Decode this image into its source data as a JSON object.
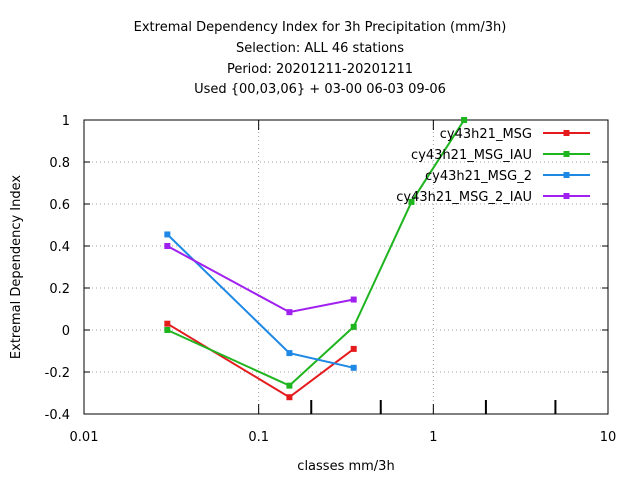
{
  "chart_data": {
    "type": "line",
    "title_lines": [
      "Extremal Dependency Index  for 3h Precipitation (mm/3h)",
      "Selection: ALL      46 stations",
      "Period: 20201211-20201211",
      "Used {00,03,06} + 03-00 06-03 09-06"
    ],
    "xlabel": "classes mm/3h",
    "ylabel": "Extremal Dependency Index",
    "xscale": "log",
    "xlim": [
      0.01,
      10
    ],
    "ylim": [
      -0.4,
      1
    ],
    "xticks": [
      {
        "value": 0.01,
        "label": "0.01"
      },
      {
        "value": 0.1,
        "label": "0.1"
      },
      {
        "value": 1,
        "label": "1"
      },
      {
        "value": 10,
        "label": "10"
      }
    ],
    "xminor": [
      0.2,
      0.5,
      2,
      5
    ],
    "yticks": [
      {
        "value": -0.4,
        "label": "-0.4"
      },
      {
        "value": -0.2,
        "label": "-0.2"
      },
      {
        "value": 0,
        "label": "0"
      },
      {
        "value": 0.2,
        "label": "0.2"
      },
      {
        "value": 0.4,
        "label": "0.4"
      },
      {
        "value": 0.6,
        "label": "0.6"
      },
      {
        "value": 0.8,
        "label": "0.8"
      },
      {
        "value": 1,
        "label": "1"
      }
    ],
    "grid": true,
    "legend_position": "top-right",
    "series": [
      {
        "name": "cy43h21_MSG",
        "color": "#e41a1c",
        "x": [
          0.03,
          0.15,
          0.35
        ],
        "y": [
          0.03,
          -0.32,
          -0.09
        ]
      },
      {
        "name": "cy43h21_MSG_IAU",
        "color": "#1fb51f",
        "x": [
          0.03,
          0.15,
          0.35,
          0.75,
          1.5
        ],
        "y": [
          0.0,
          -0.265,
          0.015,
          0.61,
          1.0
        ]
      },
      {
        "name": "cy43h21_MSG_2",
        "color": "#1e88e5",
        "x": [
          0.03,
          0.15,
          0.35
        ],
        "y": [
          0.455,
          -0.11,
          -0.18
        ]
      },
      {
        "name": "cy43h21_MSG_2_IAU",
        "color": "#a020f0",
        "x": [
          0.03,
          0.15,
          0.35
        ],
        "y": [
          0.4,
          0.085,
          0.145
        ]
      }
    ]
  }
}
